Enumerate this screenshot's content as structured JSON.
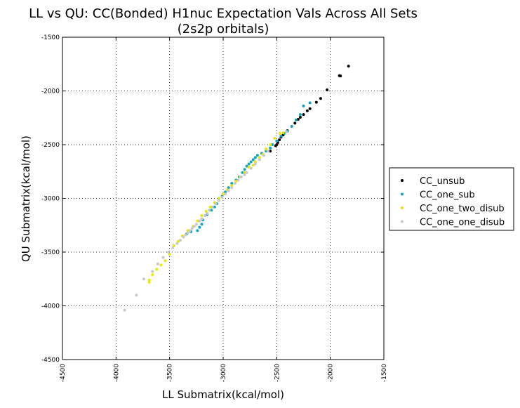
{
  "chart_data": {
    "type": "scatter",
    "title_line1": "LL vs QU: CC(Bonded) H1nuc Expectation Vals Across All Sets",
    "title_line2": "(2s2p orbitals)",
    "xlabel": "LL Submatrix(kcal/mol)",
    "ylabel": "QU Submatrix(kcal/mol)",
    "xlim": [
      -4500,
      -1500
    ],
    "ylim": [
      -4500,
      -1500
    ],
    "xticks": [
      -4500,
      -4000,
      -3500,
      -3000,
      -2500,
      -2000,
      -1500
    ],
    "yticks": [
      -1500,
      -2000,
      -2500,
      -3000,
      -3500,
      -4000,
      -4500
    ],
    "grid": true,
    "grid_style": "dotted",
    "legend_position": "right-outside-center",
    "series": [
      {
        "name": "CC_unsub",
        "color": "#000000",
        "points": [
          [
            -1830,
            -1770
          ],
          [
            -1905,
            -1860
          ],
          [
            -1915,
            -1858
          ],
          [
            -2030,
            -1990
          ],
          [
            -2090,
            -2070
          ],
          [
            -2130,
            -2105
          ],
          [
            -2190,
            -2165
          ],
          [
            -2215,
            -2185
          ],
          [
            -2250,
            -2220
          ],
          [
            -2280,
            -2245
          ],
          [
            -2300,
            -2265
          ],
          [
            -2330,
            -2300
          ],
          [
            -2400,
            -2370
          ],
          [
            -2440,
            -2410
          ],
          [
            -2460,
            -2430
          ],
          [
            -2475,
            -2455
          ],
          [
            -2490,
            -2480
          ],
          [
            -2500,
            -2500
          ],
          [
            -2510,
            -2510
          ],
          [
            -2560,
            -2560
          ]
        ]
      },
      {
        "name": "CC_one_sub",
        "color": "#17a2b8",
        "points": [
          [
            -2190,
            -2110
          ],
          [
            -2250,
            -2140
          ],
          [
            -2280,
            -2220
          ],
          [
            -2320,
            -2270
          ],
          [
            -2360,
            -2330
          ],
          [
            -2400,
            -2375
          ],
          [
            -2430,
            -2395
          ],
          [
            -2460,
            -2420
          ],
          [
            -2500,
            -2465
          ],
          [
            -2540,
            -2500
          ],
          [
            -2560,
            -2530
          ],
          [
            -2600,
            -2560
          ],
          [
            -2640,
            -2580
          ],
          [
            -2680,
            -2600
          ],
          [
            -2700,
            -2620
          ],
          [
            -2720,
            -2640
          ],
          [
            -2740,
            -2660
          ],
          [
            -2760,
            -2680
          ],
          [
            -2780,
            -2700
          ],
          [
            -2800,
            -2730
          ],
          [
            -2820,
            -2760
          ],
          [
            -2850,
            -2800
          ],
          [
            -2880,
            -2830
          ],
          [
            -2920,
            -2860
          ],
          [
            -2950,
            -2900
          ],
          [
            -2980,
            -2940
          ],
          [
            -3010,
            -2980
          ],
          [
            -3040,
            -3020
          ],
          [
            -3060,
            -3050
          ],
          [
            -3080,
            -3080
          ],
          [
            -3110,
            -3110
          ],
          [
            -3150,
            -3150
          ],
          [
            -3190,
            -3200
          ],
          [
            -3200,
            -3240
          ],
          [
            -3220,
            -3270
          ],
          [
            -3240,
            -3300
          ],
          [
            -3300,
            -3310
          ],
          [
            -3340,
            -3330
          ]
        ]
      },
      {
        "name": "CC_one_two_disub",
        "color": "#e5e516",
        "points": [
          [
            -2440,
            -2390
          ],
          [
            -2470,
            -2395
          ],
          [
            -2520,
            -2440
          ],
          [
            -2560,
            -2500
          ],
          [
            -2600,
            -2540
          ],
          [
            -2630,
            -2590
          ],
          [
            -2660,
            -2620
          ],
          [
            -2700,
            -2660
          ],
          [
            -2720,
            -2690
          ],
          [
            -2760,
            -2710
          ],
          [
            -2800,
            -2760
          ],
          [
            -2840,
            -2800
          ],
          [
            -2880,
            -2840
          ],
          [
            -2920,
            -2880
          ],
          [
            -2960,
            -2920
          ],
          [
            -3000,
            -2960
          ],
          [
            -3040,
            -3000
          ],
          [
            -3080,
            -3040
          ],
          [
            -3120,
            -3080
          ],
          [
            -3160,
            -3120
          ],
          [
            -3200,
            -3160
          ],
          [
            -3240,
            -3210
          ],
          [
            -3280,
            -3260
          ],
          [
            -3330,
            -3300
          ],
          [
            -3380,
            -3350
          ],
          [
            -3420,
            -3400
          ],
          [
            -3460,
            -3440
          ],
          [
            -3500,
            -3520
          ],
          [
            -3540,
            -3580
          ],
          [
            -3580,
            -3620
          ],
          [
            -3620,
            -3660
          ],
          [
            -3660,
            -3710
          ],
          [
            -3690,
            -3760
          ],
          [
            -3690,
            -3780
          ]
        ]
      },
      {
        "name": "CC_one_one_disub",
        "color": "#c8c8c8",
        "points": [
          [
            -2410,
            -2380
          ],
          [
            -2580,
            -2560
          ],
          [
            -2620,
            -2600
          ],
          [
            -2660,
            -2640
          ],
          [
            -2700,
            -2680
          ],
          [
            -2740,
            -2720
          ],
          [
            -2780,
            -2760
          ],
          [
            -2800,
            -2780
          ],
          [
            -2830,
            -2800
          ],
          [
            -2860,
            -2830
          ],
          [
            -2890,
            -2860
          ],
          [
            -2920,
            -2900
          ],
          [
            -2950,
            -2930
          ],
          [
            -2980,
            -2960
          ],
          [
            -3010,
            -2990
          ],
          [
            -3040,
            -3020
          ],
          [
            -3070,
            -3050
          ],
          [
            -3100,
            -3080
          ],
          [
            -3130,
            -3110
          ],
          [
            -3150,
            -3140
          ],
          [
            -3170,
            -3160
          ],
          [
            -3200,
            -3190
          ],
          [
            -3220,
            -3210
          ],
          [
            -3250,
            -3240
          ],
          [
            -3270,
            -3260
          ],
          [
            -3290,
            -3280
          ],
          [
            -3310,
            -3300
          ],
          [
            -3330,
            -3320
          ],
          [
            -3350,
            -3340
          ],
          [
            -3370,
            -3360
          ],
          [
            -3400,
            -3390
          ],
          [
            -3430,
            -3420
          ],
          [
            -3470,
            -3460
          ],
          [
            -3510,
            -3500
          ],
          [
            -3560,
            -3550
          ],
          [
            -3610,
            -3610
          ],
          [
            -3660,
            -3680
          ],
          [
            -3740,
            -3750
          ],
          [
            -3810,
            -3900
          ],
          [
            -3920,
            -4040
          ]
        ]
      }
    ]
  }
}
